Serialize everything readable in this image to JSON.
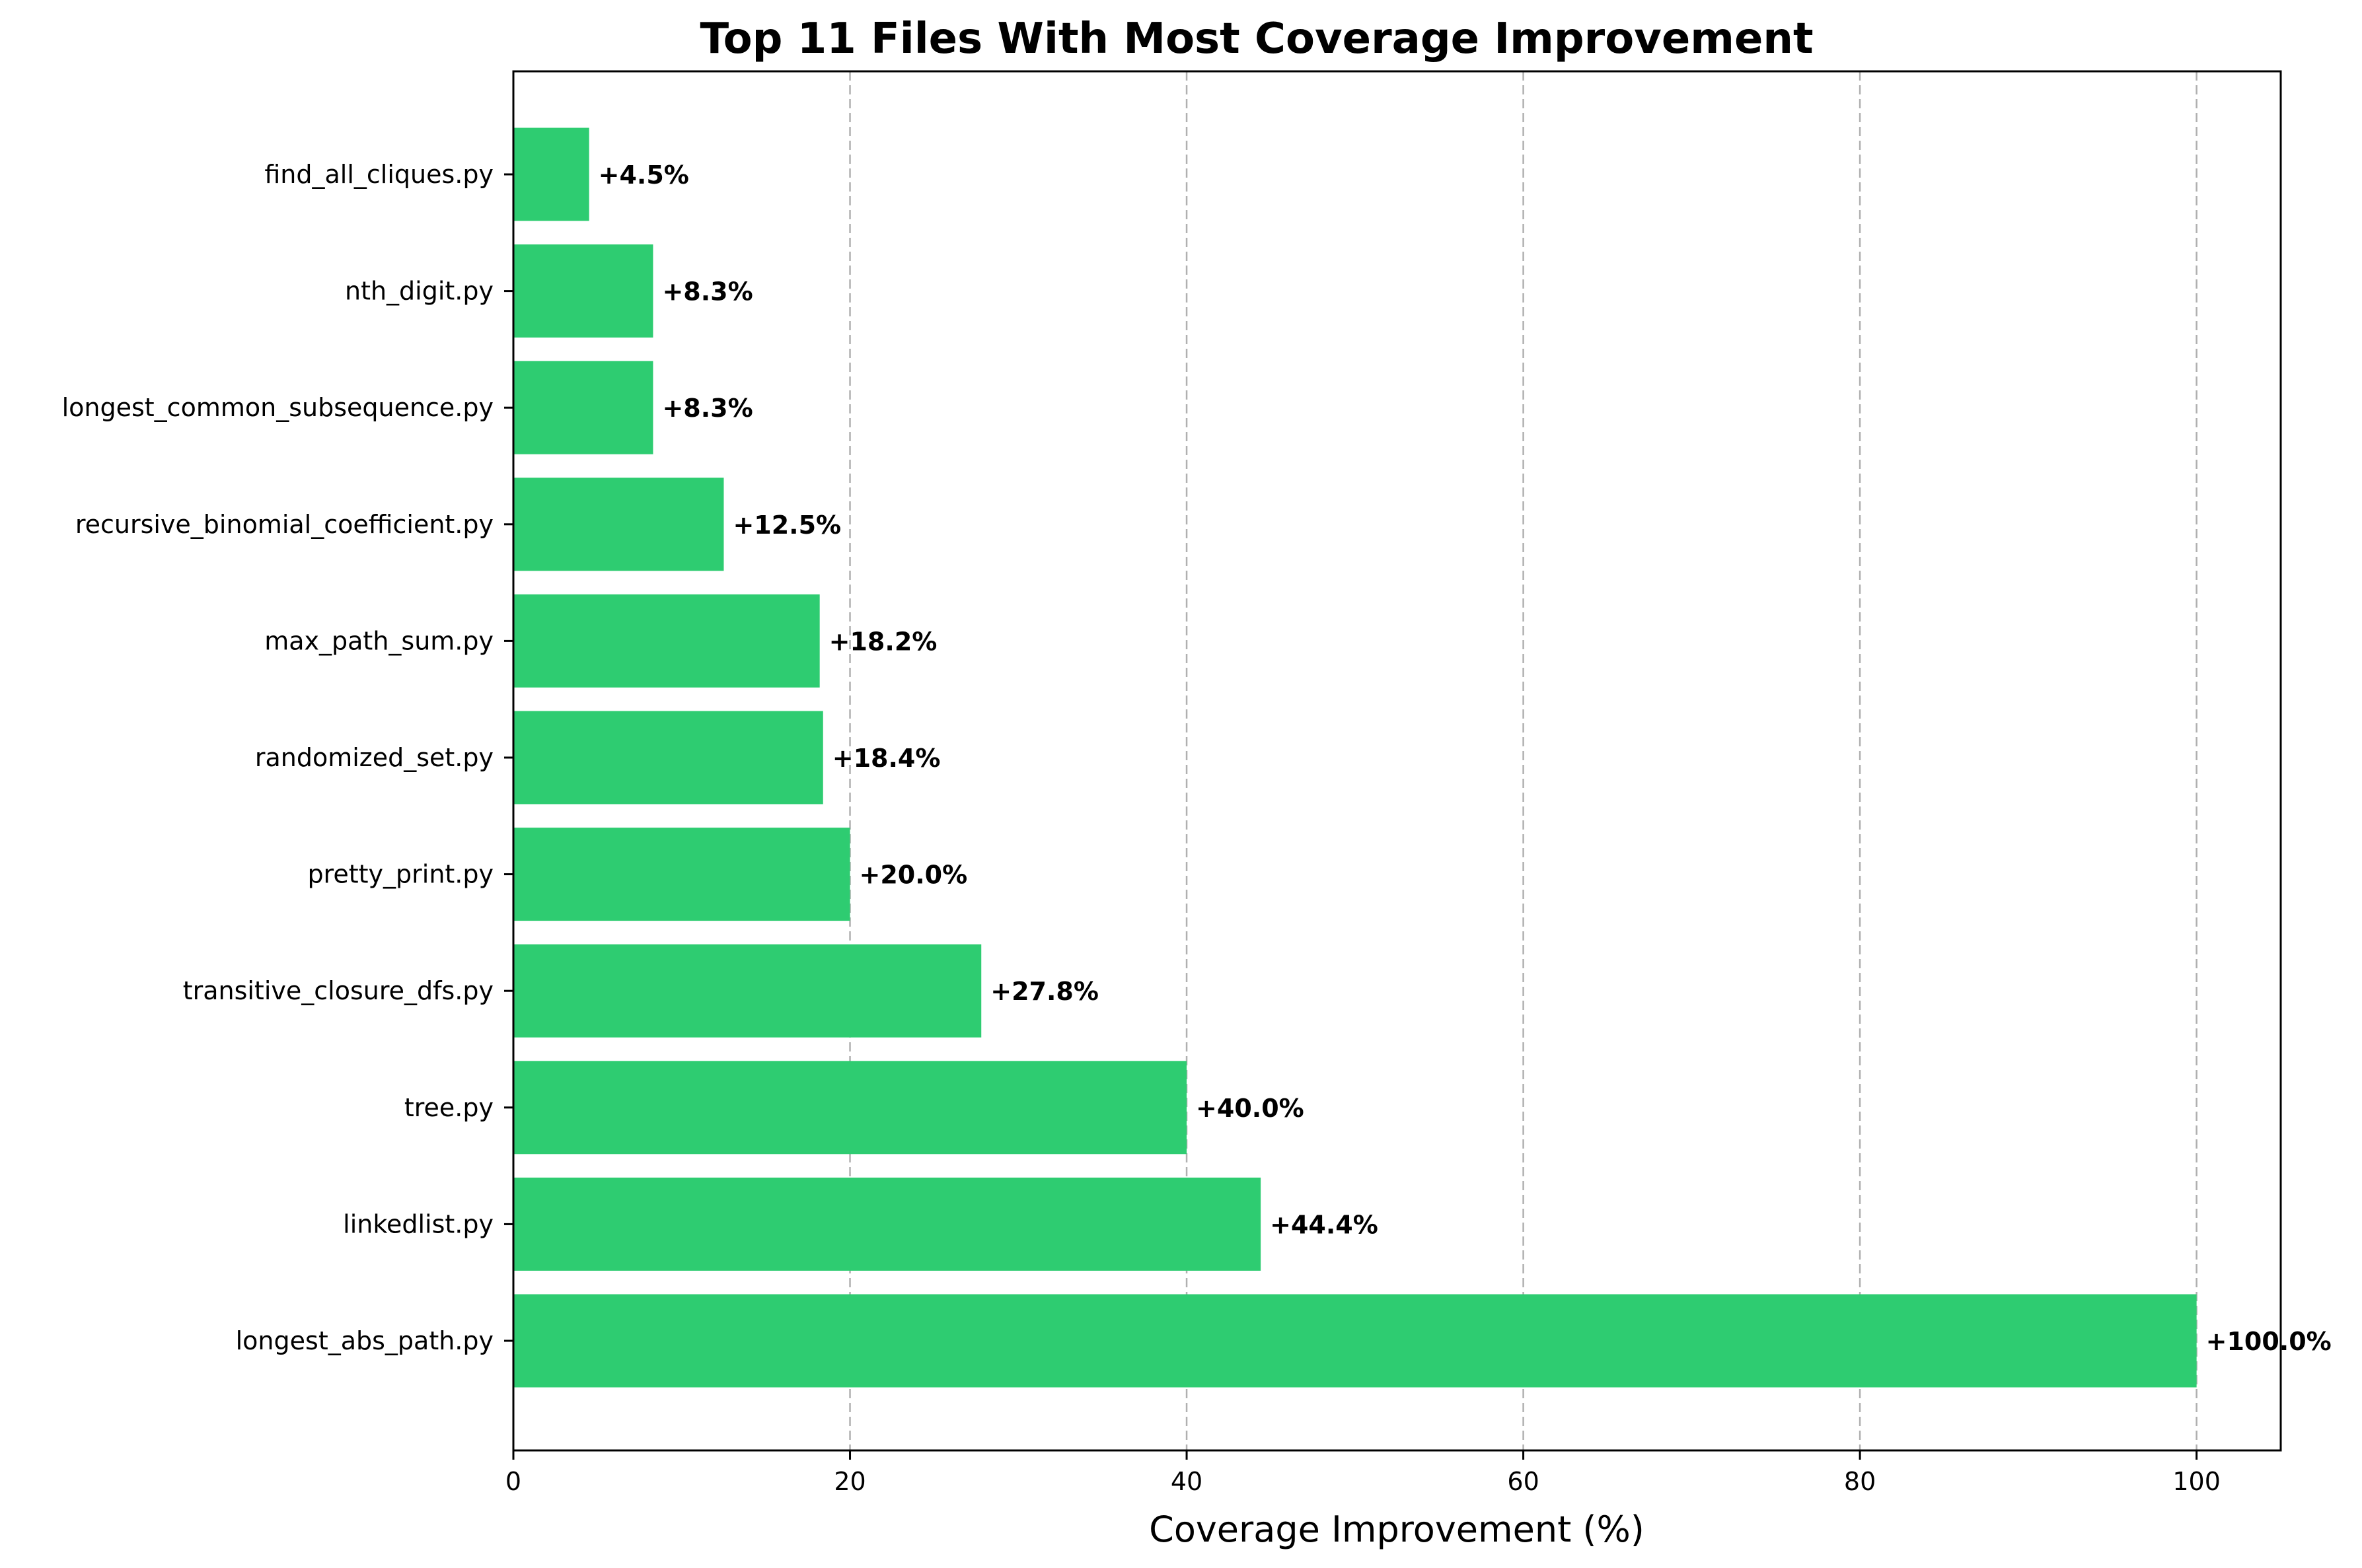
{
  "chart_data": {
    "type": "bar",
    "orientation": "horizontal",
    "title": "Top 11 Files With Most Coverage Improvement",
    "xlabel": "Coverage Improvement (%)",
    "ylabel": "",
    "xlim": [
      0,
      105
    ],
    "xticks": [
      0,
      20,
      40,
      60,
      80,
      100
    ],
    "grid": "x",
    "bar_color": "#2ecc71",
    "categories": [
      "longest_abs_path.py",
      "linkedlist.py",
      "tree.py",
      "transitive_closure_dfs.py",
      "pretty_print.py",
      "randomized_set.py",
      "max_path_sum.py",
      "recursive_binomial_coefficient.py",
      "longest_common_subsequence.py",
      "nth_digit.py",
      "find_all_cliques.py"
    ],
    "values": [
      100.0,
      44.4,
      40.0,
      27.8,
      20.0,
      18.4,
      18.2,
      12.5,
      8.3,
      8.3,
      4.5
    ],
    "data_labels": [
      "+100.0%",
      "+44.4%",
      "+40.0%",
      "+27.8%",
      "+20.0%",
      "+18.4%",
      "+18.2%",
      "+12.5%",
      "+8.3%",
      "+8.3%",
      "+4.5%"
    ]
  }
}
